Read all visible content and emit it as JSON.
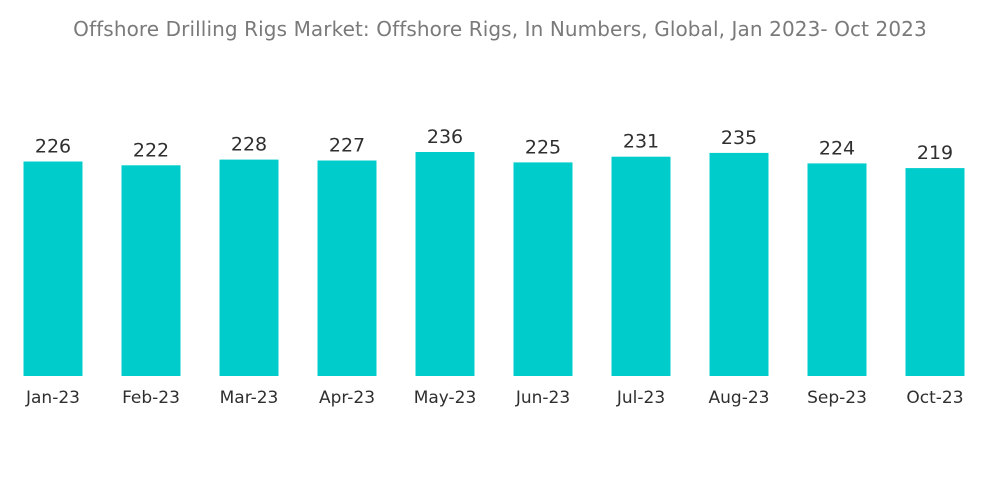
{
  "chart_data": {
    "type": "bar",
    "title": "Offshore Drilling Rigs Market: Offshore Rigs, In Numbers, Global, Jan 2023- Oct 2023",
    "categories": [
      "Jan-23",
      "Feb-23",
      "Mar-23",
      "Apr-23",
      "May-23",
      "Jun-23",
      "Jul-23",
      "Aug-23",
      "Sep-23",
      "Oct-23"
    ],
    "values": [
      226,
      222,
      228,
      227,
      236,
      225,
      231,
      235,
      224,
      219
    ],
    "xlabel": "",
    "ylabel": "",
    "ylim": [
      0,
      236
    ],
    "grid": false,
    "legend": "none",
    "data_labels": true,
    "bar_color": "#00CCCC"
  }
}
